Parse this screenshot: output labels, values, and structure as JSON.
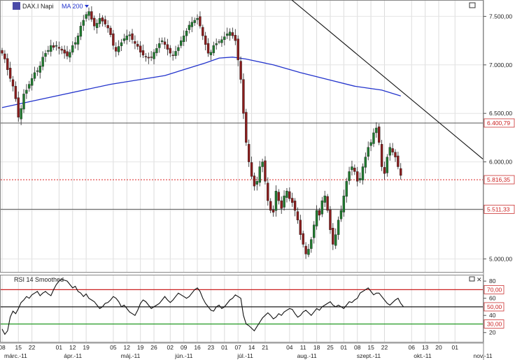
{
  "header": {
    "symbol": "DAX.I Napi",
    "indicator": "MA 200",
    "colors": {
      "indicator": "#2233cc",
      "icon": "#4a4aa8"
    }
  },
  "rsi_panel": {
    "title": "RSI 14 Smoothed",
    "levels": [
      {
        "value": 70,
        "label": "70,00",
        "color": "#cc2222"
      },
      {
        "value": 50,
        "label": "50,00",
        "color": "#000000"
      },
      {
        "value": 30,
        "label": "30,00",
        "color": "#229922"
      }
    ],
    "y_ticks": [
      "80",
      "60",
      "40",
      "20"
    ]
  },
  "chart_data": [
    {
      "type": "candlestick",
      "series_name": "DAX.I Napi",
      "ylim": [
        4880,
        7640
      ],
      "y_ticks": [
        {
          "value": 7500,
          "label": "7.500,00"
        },
        {
          "value": 7000,
          "label": "7.000,00"
        },
        {
          "value": 6500,
          "label": "6.500,00"
        },
        {
          "value": 6000,
          "label": "6.000,00"
        },
        {
          "value": 5500,
          "label": "5.500,00"
        },
        {
          "value": 5000,
          "label": "5.000,00"
        }
      ],
      "levels": [
        {
          "value": 6400.79,
          "label": "6.400,79",
          "style": "solid",
          "color": "#555555"
        },
        {
          "value": 5816.35,
          "label": "5.816,35",
          "style": "dotted",
          "color": "#dd2222"
        },
        {
          "value": 5511.33,
          "label": "5.511,33",
          "style": "solid",
          "color": "#555555"
        }
      ],
      "trendline": {
        "from": {
          "i": 48,
          "v": 7640
        },
        "to": {
          "i": 152,
          "v": 6030
        }
      },
      "ma200": [
        [
          0,
          6560
        ],
        [
          20,
          6680
        ],
        [
          40,
          6800
        ],
        [
          60,
          6890
        ],
        [
          75,
          7020
        ],
        [
          80,
          7070
        ],
        [
          85,
          7080
        ],
        [
          90,
          7060
        ],
        [
          100,
          7000
        ],
        [
          110,
          6920
        ],
        [
          120,
          6850
        ],
        [
          130,
          6780
        ],
        [
          140,
          6740
        ],
        [
          147,
          6680
        ]
      ],
      "close": [
        7120,
        7060,
        6950,
        6860,
        6780,
        6650,
        6460,
        6550,
        6700,
        6740,
        6800,
        6860,
        6920,
        6940,
        6990,
        7080,
        7120,
        7150,
        7200,
        7180,
        7200,
        7170,
        7150,
        7120,
        7090,
        7130,
        7200,
        7230,
        7300,
        7400,
        7460,
        7520,
        7550,
        7470,
        7400,
        7430,
        7480,
        7450,
        7420,
        7380,
        7310,
        7200,
        7140,
        7190,
        7230,
        7270,
        7300,
        7310,
        7260,
        7220,
        7190,
        7130,
        7100,
        7080,
        7070,
        7080,
        7130,
        7170,
        7220,
        7250,
        7210,
        7160,
        7120,
        7100,
        7140,
        7180,
        7250,
        7300,
        7350,
        7410,
        7440,
        7460,
        7480,
        7400,
        7300,
        7210,
        7120,
        7130,
        7200,
        7220,
        7240,
        7260,
        7290,
        7320,
        7340,
        7300,
        7250,
        7050,
        6850,
        6500,
        6200,
        6000,
        5850,
        5750,
        5800,
        5950,
        6000,
        5800,
        5600,
        5500,
        5480,
        5700,
        5600,
        5520,
        5650,
        5700,
        5620,
        5580,
        5500,
        5400,
        5250,
        5150,
        5050,
        5100,
        5200,
        5350,
        5500,
        5450,
        5600,
        5650,
        5500,
        5300,
        5150,
        5250,
        5400,
        5500,
        5650,
        5800,
        5900,
        5950,
        5900,
        5800,
        5830,
        5950,
        6050,
        6150,
        6200,
        6300,
        6350,
        6200,
        5950,
        5880,
        6050,
        6150,
        6100,
        6050,
        5950,
        5860
      ]
    },
    {
      "type": "line",
      "series_name": "RSI 14 Smoothed",
      "ylim": [
        10,
        85
      ],
      "values": [
        24,
        18,
        22,
        38,
        45,
        42,
        48,
        55,
        58,
        62,
        60,
        64,
        66,
        68,
        63,
        66,
        68,
        65,
        63,
        70,
        76,
        80,
        82,
        81,
        80,
        76,
        72,
        74,
        68,
        66,
        62,
        65,
        60,
        58,
        56,
        52,
        48,
        50,
        54,
        55,
        58,
        62,
        60,
        56,
        50,
        52,
        48,
        44,
        42,
        40,
        46,
        54,
        58,
        56,
        52,
        48,
        50,
        52,
        54,
        58,
        62,
        58,
        55,
        58,
        62,
        66,
        64,
        62,
        60,
        62,
        66,
        70,
        72,
        68,
        60,
        54,
        50,
        46,
        45,
        50,
        52,
        48,
        50,
        54,
        58,
        60,
        64,
        62,
        60,
        40,
        30,
        28,
        25,
        22,
        27,
        32,
        37,
        40,
        43,
        40,
        36,
        38,
        42,
        40,
        44,
        46,
        48,
        47,
        42,
        38,
        40,
        44,
        46,
        43,
        40,
        44,
        48,
        46,
        50,
        52,
        54,
        56,
        52,
        50,
        52,
        50,
        48,
        52,
        56,
        55,
        58,
        60,
        66,
        68,
        70,
        72,
        68,
        64,
        66,
        66,
        62,
        58,
        54,
        52,
        55,
        58,
        60,
        54,
        50
      ]
    }
  ],
  "x_axis": {
    "day_ticks": [
      {
        "i": 0,
        "label": "08"
      },
      {
        "i": 6,
        "label": "15"
      },
      {
        "i": 11,
        "label": "22"
      },
      {
        "i": 21,
        "label": "01"
      },
      {
        "i": 26,
        "label": "12"
      },
      {
        "i": 31,
        "label": "19"
      },
      {
        "i": 41,
        "label": "05"
      },
      {
        "i": 46,
        "label": "12"
      },
      {
        "i": 51,
        "label": "19"
      },
      {
        "i": 56,
        "label": "26"
      },
      {
        "i": 62,
        "label": "02"
      },
      {
        "i": 67,
        "label": "09"
      },
      {
        "i": 72,
        "label": "16"
      },
      {
        "i": 77,
        "label": "23"
      },
      {
        "i": 82,
        "label": "01"
      },
      {
        "i": 87,
        "label": "07"
      },
      {
        "i": 92,
        "label": "14"
      },
      {
        "i": 97,
        "label": "21"
      },
      {
        "i": 106,
        "label": "04"
      },
      {
        "i": 111,
        "label": "11"
      },
      {
        "i": 116,
        "label": "18"
      },
      {
        "i": 121,
        "label": "25"
      },
      {
        "i": 126,
        "label": "01"
      },
      {
        "i": 131,
        "label": "08"
      },
      {
        "i": 136,
        "label": "15"
      },
      {
        "i": 141,
        "label": "22"
      },
      {
        "i": 151,
        "label": "06"
      },
      {
        "i": 156,
        "label": "13"
      },
      {
        "i": 161,
        "label": "20"
      },
      {
        "i": 167,
        "label": "01"
      }
    ],
    "month_ticks": [
      {
        "i": 0,
        "label": "márc.-11"
      },
      {
        "i": 22,
        "label": "ápr.-11"
      },
      {
        "i": 43,
        "label": "máj.-11"
      },
      {
        "i": 63,
        "label": "jún.-11"
      },
      {
        "i": 86,
        "label": "júl.-11"
      },
      {
        "i": 108,
        "label": "aug.-11"
      },
      {
        "i": 130,
        "label": "szept.-11"
      },
      {
        "i": 151,
        "label": "okt.-11"
      },
      {
        "i": 173,
        "label": "nov.-11"
      }
    ]
  }
}
